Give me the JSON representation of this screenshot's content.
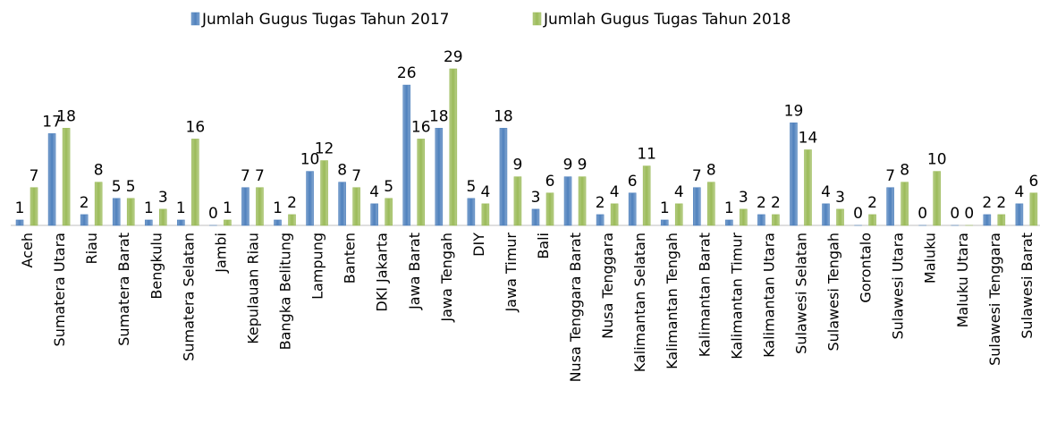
{
  "chart_data": {
    "type": "bar",
    "categories": [
      "Aceh",
      "Sumatera Utara",
      "Riau",
      "Sumatera Barat",
      "Bengkulu",
      "Sumatera Selatan",
      "Jambi",
      "Kepulauan Riau",
      "Bangka Belitung",
      "Lampung",
      "Banten",
      "DKI Jakarta",
      "Jawa Barat",
      "Jawa Tengah",
      "DIY",
      "Jawa Timur",
      "Bali",
      "Nusa Tenggara Barat",
      "Nusa Tenggara",
      "Kalimantan Selatan",
      "Kalimantan Tengah",
      "Kalimantan Barat",
      "Kalimantan Timur",
      "Kalimantan Utara",
      "Sulawesi Selatan",
      "Sulawesi Tengah",
      "Gorontalo",
      "Sulawesi Utara",
      "Maluku",
      "Maluku Utara",
      "Sulawesi Tenggara",
      "Sulawesi Barat"
    ],
    "series": [
      {
        "name": "Jumlah Gugus Tugas Tahun 2017",
        "color": "#4f81bd",
        "values": [
          1,
          17,
          2,
          5,
          1,
          1,
          0,
          7,
          1,
          10,
          8,
          4,
          26,
          18,
          5,
          18,
          3,
          9,
          2,
          6,
          1,
          7,
          1,
          2,
          19,
          4,
          0,
          7,
          0,
          0,
          2,
          4
        ]
      },
      {
        "name": "Jumlah Gugus Tugas Tahun 2018",
        "color": "#9bbb59",
        "values": [
          7,
          18,
          8,
          5,
          3,
          16,
          1,
          7,
          2,
          12,
          7,
          5,
          16,
          29,
          4,
          9,
          6,
          9,
          4,
          11,
          4,
          8,
          3,
          2,
          14,
          3,
          2,
          8,
          10,
          0,
          2,
          6
        ]
      }
    ],
    "legend": "top"
  }
}
